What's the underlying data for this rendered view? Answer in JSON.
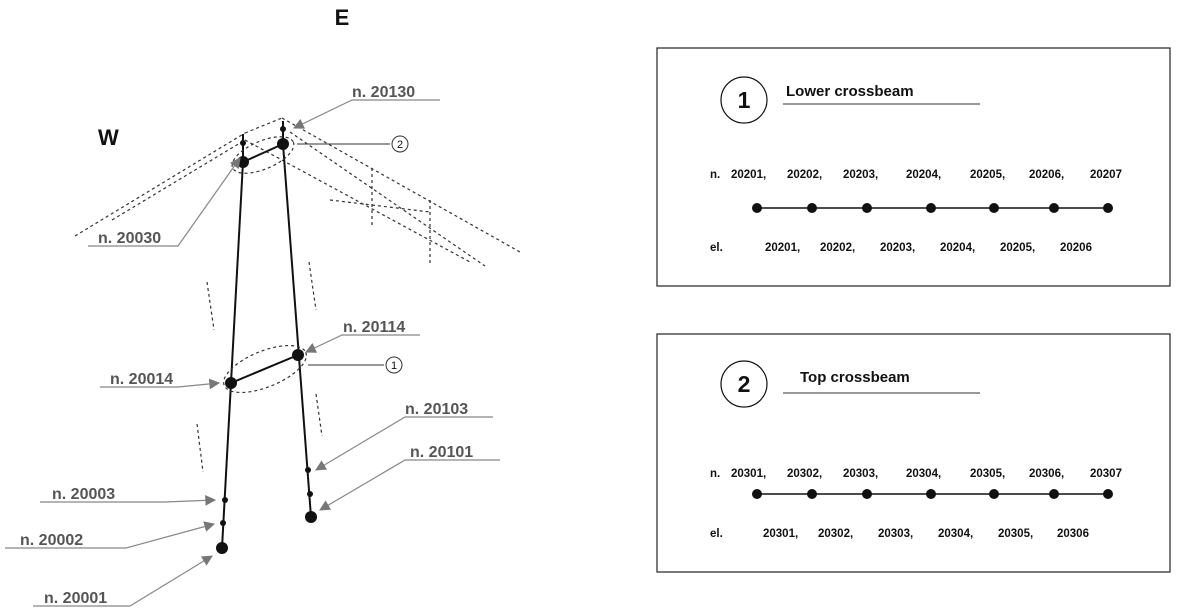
{
  "directions": {
    "east": "E",
    "west": "W"
  },
  "node_labels": {
    "n20130": "n. 20130",
    "n20030": "n. 20030",
    "n20114": "n. 20114",
    "n20014": "n. 20014",
    "n20103": "n. 20103",
    "n20101": "n. 20101",
    "n20003": "n. 20003",
    "n20002": "n. 20002",
    "n20001": "n. 20001"
  },
  "section_markers": {
    "lower": "1",
    "top": "2"
  },
  "lower_panel": {
    "number": "1",
    "title": "Lower crossbeam",
    "nodes_prefix": "n.",
    "nodes": [
      "20201,",
      "20202,",
      "20203,",
      "20204,",
      "20205,",
      "20206,",
      "20207"
    ],
    "elements_prefix": "el.",
    "elements": [
      "20201,",
      "20202,",
      "20203,",
      "20204,",
      "20205,",
      "20206"
    ]
  },
  "top_panel": {
    "number": "2",
    "title": "Top crossbeam",
    "nodes_prefix": "n.",
    "nodes": [
      "20301,",
      "20302,",
      "20303,",
      "20304,",
      "20305,",
      "20306,",
      "20307"
    ],
    "elements_prefix": "el.",
    "elements": [
      "20301,",
      "20302,",
      "20303,",
      "20304,",
      "20305,",
      "20306"
    ]
  },
  "colors": {
    "label": "#555555",
    "line": "#111111",
    "leader": "#888888"
  }
}
